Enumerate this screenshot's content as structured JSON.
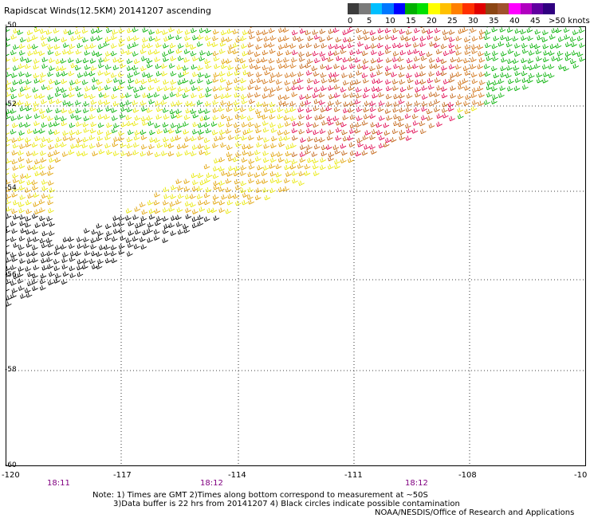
{
  "title": "Rapidscat Winds(12.5KM) 20141207 ascending",
  "scale": {
    "colors": [
      "#3c3c3c",
      "#7a7a7a",
      "#00bfff",
      "#0077ff",
      "#0000ff",
      "#00b000",
      "#00e000",
      "#ffff00",
      "#ffc000",
      "#ff8000",
      "#ff3000",
      "#e00000",
      "#8b4513",
      "#a0522d",
      "#ff00ff",
      "#b000c0",
      "#6000a0",
      "#300080"
    ],
    "labels": [
      "0",
      "5",
      "10",
      "15",
      "20",
      "25",
      "30",
      "35",
      "40",
      "45",
      ">50 knots"
    ]
  },
  "axes": {
    "lon_labels": [
      "-120",
      "-117",
      "-114",
      "-111",
      "-108",
      "-10"
    ],
    "lat_labels": [
      "-50",
      "-52",
      "-54",
      "-56",
      "-58",
      "-60"
    ]
  },
  "times": [
    "18:11",
    "18:12",
    "18:12"
  ],
  "notes": {
    "line1": "Note: 1) Times are GMT 2)Times along bottom correspond to measurement at ~50S",
    "line2": "3)Data buffer is 22 hrs from 20141207 4) Black circles indicate possible contamination",
    "line3": "NOAA/NESDIS/Office of Research and Applications"
  }
}
